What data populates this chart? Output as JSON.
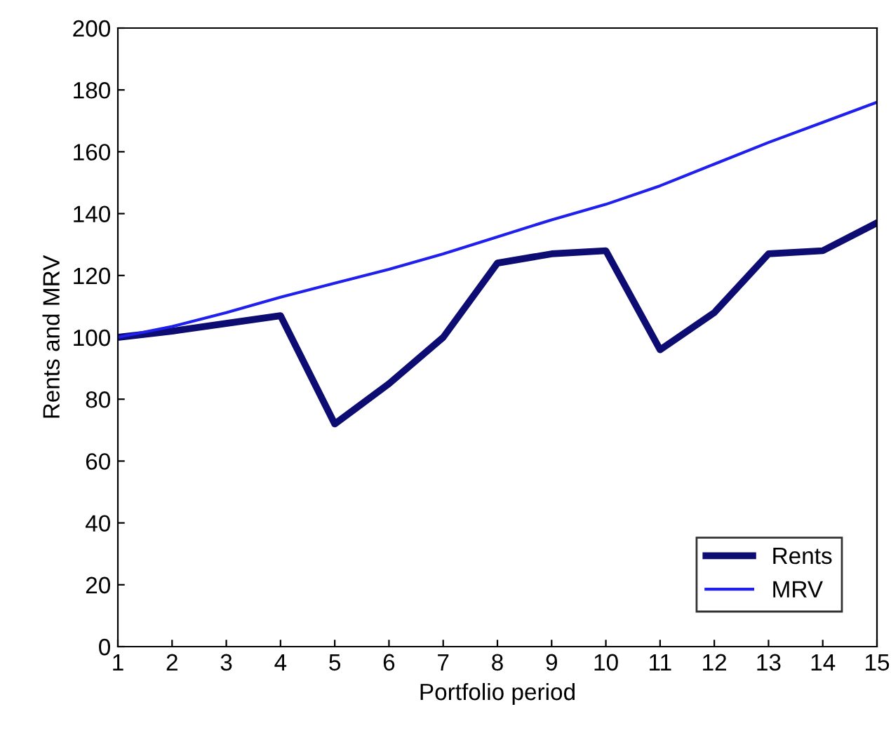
{
  "chart_data": {
    "type": "line",
    "xlabel": "Portfolio period",
    "ylabel": "Rents and MRV",
    "x": [
      1,
      2,
      3,
      4,
      5,
      6,
      7,
      8,
      9,
      10,
      11,
      12,
      13,
      14,
      15
    ],
    "series": [
      {
        "name": "Rents",
        "color": "#0c0c72",
        "values": [
          100,
          102,
          104.5,
          107,
          72,
          85,
          100,
          124,
          127,
          128,
          96,
          108,
          127,
          128,
          137
        ]
      },
      {
        "name": "MRV",
        "color": "#2020ee",
        "values": [
          100,
          103.5,
          108,
          113,
          117.5,
          122,
          127,
          132.5,
          138,
          143,
          149,
          156,
          163,
          169.5,
          176
        ]
      }
    ],
    "xlim": [
      1,
      15
    ],
    "xticks": [
      1,
      2,
      3,
      4,
      5,
      6,
      7,
      8,
      9,
      10,
      11,
      12,
      13,
      14,
      15
    ],
    "ylim": [
      0,
      200
    ],
    "yticks": [
      0,
      20,
      40,
      60,
      80,
      100,
      120,
      140,
      160,
      180,
      200
    ],
    "grid": false,
    "legend": "bottom right",
    "marker": "none",
    "line_style": "solid"
  }
}
